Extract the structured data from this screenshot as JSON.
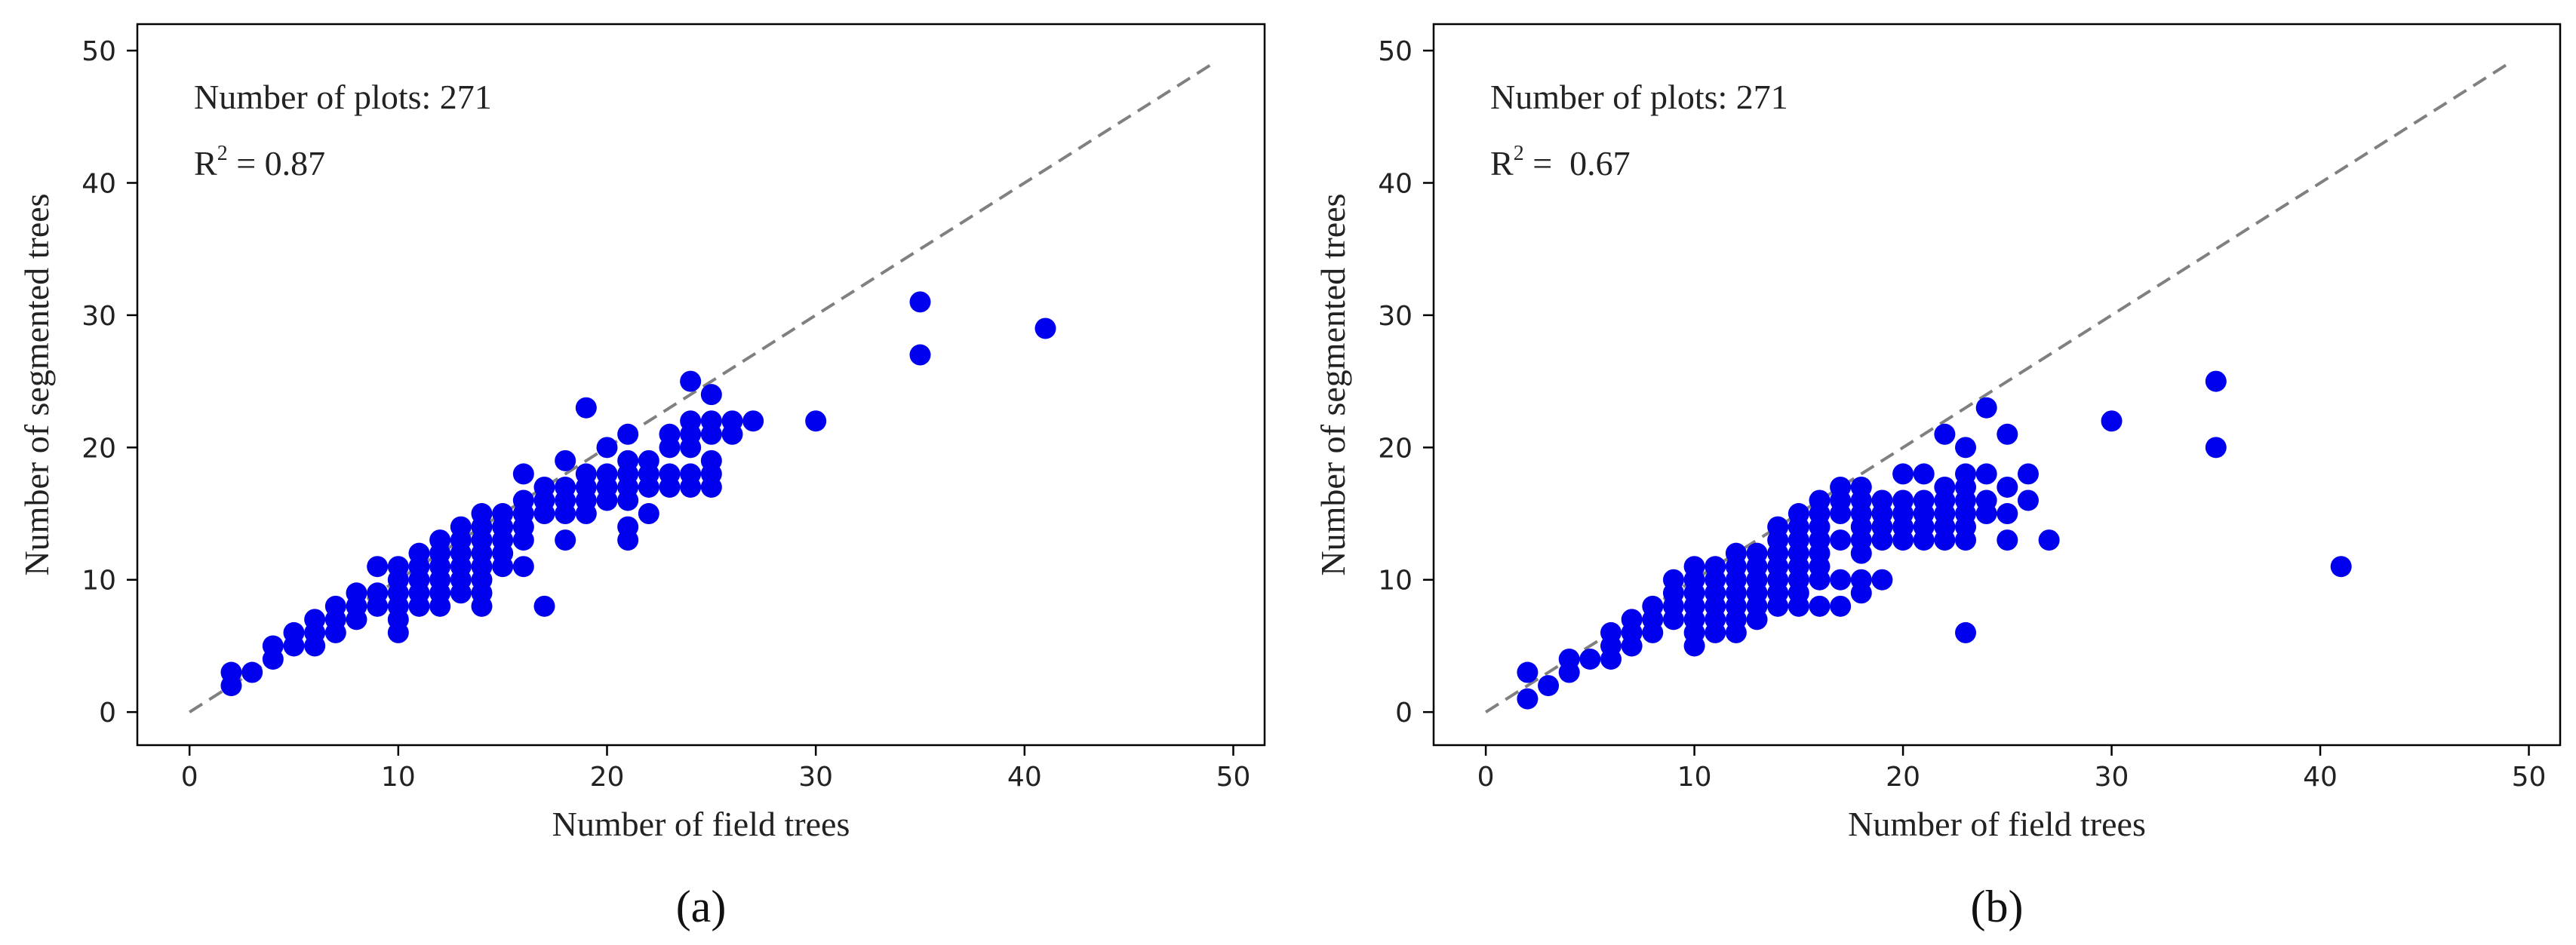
{
  "chart_data": [
    {
      "type": "scatter",
      "panel_label": "(a)",
      "xlabel": "Number of field trees",
      "ylabel": "Number of segmented trees",
      "xlim": [
        -2.5,
        51.5
      ],
      "ylim": [
        -2.5,
        52
      ],
      "xticks": [
        0,
        10,
        20,
        30,
        40,
        50
      ],
      "yticks": [
        0,
        10,
        20,
        30,
        40,
        50
      ],
      "annotations": {
        "count_text": "Number of plots: 271",
        "r2_prefix": "R",
        "r2_sup": "2",
        "r2_value": " = 0.87"
      },
      "reference_line": {
        "style": "dashed",
        "color": "#808080",
        "from": [
          0,
          0
        ],
        "to": [
          49,
          49
        ]
      },
      "marker_color": "#0000ee",
      "grid": false,
      "points": [
        [
          2,
          3
        ],
        [
          2,
          2
        ],
        [
          3,
          3
        ],
        [
          4,
          4
        ],
        [
          4,
          5
        ],
        [
          5,
          5
        ],
        [
          5,
          6
        ],
        [
          6,
          5
        ],
        [
          6,
          6
        ],
        [
          6,
          7
        ],
        [
          7,
          6
        ],
        [
          7,
          7
        ],
        [
          7,
          8
        ],
        [
          8,
          7
        ],
        [
          8,
          8
        ],
        [
          8,
          9
        ],
        [
          9,
          8
        ],
        [
          9,
          9
        ],
        [
          9,
          11
        ],
        [
          10,
          6
        ],
        [
          10,
          7
        ],
        [
          10,
          8
        ],
        [
          10,
          9
        ],
        [
          10,
          10
        ],
        [
          10,
          11
        ],
        [
          11,
          8
        ],
        [
          11,
          9
        ],
        [
          11,
          10
        ],
        [
          11,
          11
        ],
        [
          11,
          12
        ],
        [
          12,
          8
        ],
        [
          12,
          9
        ],
        [
          12,
          10
        ],
        [
          12,
          11
        ],
        [
          12,
          12
        ],
        [
          12,
          13
        ],
        [
          13,
          9
        ],
        [
          13,
          10
        ],
        [
          13,
          11
        ],
        [
          13,
          12
        ],
        [
          13,
          13
        ],
        [
          13,
          14
        ],
        [
          14,
          8
        ],
        [
          14,
          9
        ],
        [
          14,
          10
        ],
        [
          14,
          11
        ],
        [
          14,
          12
        ],
        [
          14,
          13
        ],
        [
          14,
          14
        ],
        [
          14,
          15
        ],
        [
          15,
          11
        ],
        [
          15,
          12
        ],
        [
          15,
          13
        ],
        [
          15,
          14
        ],
        [
          15,
          15
        ],
        [
          16,
          11
        ],
        [
          16,
          13
        ],
        [
          16,
          14
        ],
        [
          16,
          15
        ],
        [
          16,
          16
        ],
        [
          16,
          18
        ],
        [
          17,
          8
        ],
        [
          17,
          15
        ],
        [
          17,
          16
        ],
        [
          17,
          17
        ],
        [
          18,
          13
        ],
        [
          18,
          15
        ],
        [
          18,
          16
        ],
        [
          18,
          17
        ],
        [
          18,
          19
        ],
        [
          19,
          15
        ],
        [
          19,
          16
        ],
        [
          19,
          17
        ],
        [
          19,
          18
        ],
        [
          19,
          23
        ],
        [
          20,
          16
        ],
        [
          20,
          17
        ],
        [
          20,
          18
        ],
        [
          20,
          20
        ],
        [
          21,
          13
        ],
        [
          21,
          14
        ],
        [
          21,
          16
        ],
        [
          21,
          17
        ],
        [
          21,
          18
        ],
        [
          21,
          19
        ],
        [
          21,
          21
        ],
        [
          22,
          15
        ],
        [
          22,
          17
        ],
        [
          22,
          18
        ],
        [
          22,
          19
        ],
        [
          23,
          17
        ],
        [
          23,
          18
        ],
        [
          23,
          20
        ],
        [
          23,
          21
        ],
        [
          24,
          17
        ],
        [
          24,
          18
        ],
        [
          24,
          20
        ],
        [
          24,
          21
        ],
        [
          24,
          22
        ],
        [
          24,
          25
        ],
        [
          25,
          17
        ],
        [
          25,
          18
        ],
        [
          25,
          19
        ],
        [
          25,
          21
        ],
        [
          25,
          22
        ],
        [
          25,
          24
        ],
        [
          26,
          21
        ],
        [
          26,
          22
        ],
        [
          27,
          22
        ],
        [
          30,
          22
        ],
        [
          35,
          27
        ],
        [
          35,
          31
        ],
        [
          41,
          29
        ]
      ]
    },
    {
      "type": "scatter",
      "panel_label": "(b)",
      "xlabel": "Number of field trees",
      "ylabel": "Number of segmented trees",
      "xlim": [
        -2.5,
        51.5
      ],
      "ylim": [
        -2.5,
        52
      ],
      "xticks": [
        0,
        10,
        20,
        30,
        40,
        50
      ],
      "yticks": [
        0,
        10,
        20,
        30,
        40,
        50
      ],
      "annotations": {
        "count_text": "Number of plots: 271",
        "r2_prefix": "R",
        "r2_sup": "2",
        "r2_value": " =  0.67"
      },
      "reference_line": {
        "style": "dashed",
        "color": "#808080",
        "from": [
          0,
          0
        ],
        "to": [
          49,
          49
        ]
      },
      "marker_color": "#0000ee",
      "grid": false,
      "points": [
        [
          2,
          1
        ],
        [
          2,
          3
        ],
        [
          3,
          2
        ],
        [
          4,
          3
        ],
        [
          4,
          4
        ],
        [
          5,
          4
        ],
        [
          6,
          4
        ],
        [
          6,
          5
        ],
        [
          6,
          6
        ],
        [
          7,
          5
        ],
        [
          7,
          6
        ],
        [
          7,
          7
        ],
        [
          8,
          6
        ],
        [
          8,
          7
        ],
        [
          8,
          8
        ],
        [
          9,
          7
        ],
        [
          9,
          8
        ],
        [
          9,
          9
        ],
        [
          9,
          10
        ],
        [
          10,
          5
        ],
        [
          10,
          6
        ],
        [
          10,
          7
        ],
        [
          10,
          8
        ],
        [
          10,
          9
        ],
        [
          10,
          10
        ],
        [
          10,
          11
        ],
        [
          11,
          6
        ],
        [
          11,
          7
        ],
        [
          11,
          8
        ],
        [
          11,
          9
        ],
        [
          11,
          10
        ],
        [
          11,
          11
        ],
        [
          12,
          6
        ],
        [
          12,
          7
        ],
        [
          12,
          8
        ],
        [
          12,
          9
        ],
        [
          12,
          10
        ],
        [
          12,
          11
        ],
        [
          12,
          12
        ],
        [
          13,
          7
        ],
        [
          13,
          8
        ],
        [
          13,
          9
        ],
        [
          13,
          10
        ],
        [
          13,
          11
        ],
        [
          13,
          12
        ],
        [
          14,
          8
        ],
        [
          14,
          9
        ],
        [
          14,
          10
        ],
        [
          14,
          11
        ],
        [
          14,
          12
        ],
        [
          14,
          13
        ],
        [
          14,
          14
        ],
        [
          15,
          8
        ],
        [
          15,
          9
        ],
        [
          15,
          10
        ],
        [
          15,
          11
        ],
        [
          15,
          12
        ],
        [
          15,
          13
        ],
        [
          15,
          14
        ],
        [
          15,
          15
        ],
        [
          16,
          8
        ],
        [
          16,
          10
        ],
        [
          16,
          11
        ],
        [
          16,
          12
        ],
        [
          16,
          13
        ],
        [
          16,
          14
        ],
        [
          16,
          15
        ],
        [
          16,
          16
        ],
        [
          17,
          8
        ],
        [
          17,
          10
        ],
        [
          17,
          13
        ],
        [
          17,
          15
        ],
        [
          17,
          16
        ],
        [
          17,
          17
        ],
        [
          18,
          9
        ],
        [
          18,
          10
        ],
        [
          18,
          12
        ],
        [
          18,
          13
        ],
        [
          18,
          14
        ],
        [
          18,
          15
        ],
        [
          18,
          16
        ],
        [
          18,
          17
        ],
        [
          19,
          10
        ],
        [
          19,
          13
        ],
        [
          19,
          14
        ],
        [
          19,
          15
        ],
        [
          19,
          16
        ],
        [
          20,
          13
        ],
        [
          20,
          14
        ],
        [
          20,
          15
        ],
        [
          20,
          16
        ],
        [
          20,
          18
        ],
        [
          21,
          13
        ],
        [
          21,
          14
        ],
        [
          21,
          15
        ],
        [
          21,
          16
        ],
        [
          21,
          18
        ],
        [
          22,
          13
        ],
        [
          22,
          14
        ],
        [
          22,
          15
        ],
        [
          22,
          16
        ],
        [
          22,
          17
        ],
        [
          22,
          21
        ],
        [
          23,
          6
        ],
        [
          23,
          13
        ],
        [
          23,
          14
        ],
        [
          23,
          15
        ],
        [
          23,
          16
        ],
        [
          23,
          17
        ],
        [
          23,
          18
        ],
        [
          23,
          20
        ],
        [
          24,
          15
        ],
        [
          24,
          16
        ],
        [
          24,
          18
        ],
        [
          24,
          23
        ],
        [
          25,
          13
        ],
        [
          25,
          15
        ],
        [
          25,
          17
        ],
        [
          25,
          21
        ],
        [
          26,
          16
        ],
        [
          26,
          18
        ],
        [
          27,
          13
        ],
        [
          30,
          22
        ],
        [
          35,
          20
        ],
        [
          35,
          25
        ],
        [
          41,
          11
        ]
      ]
    }
  ]
}
